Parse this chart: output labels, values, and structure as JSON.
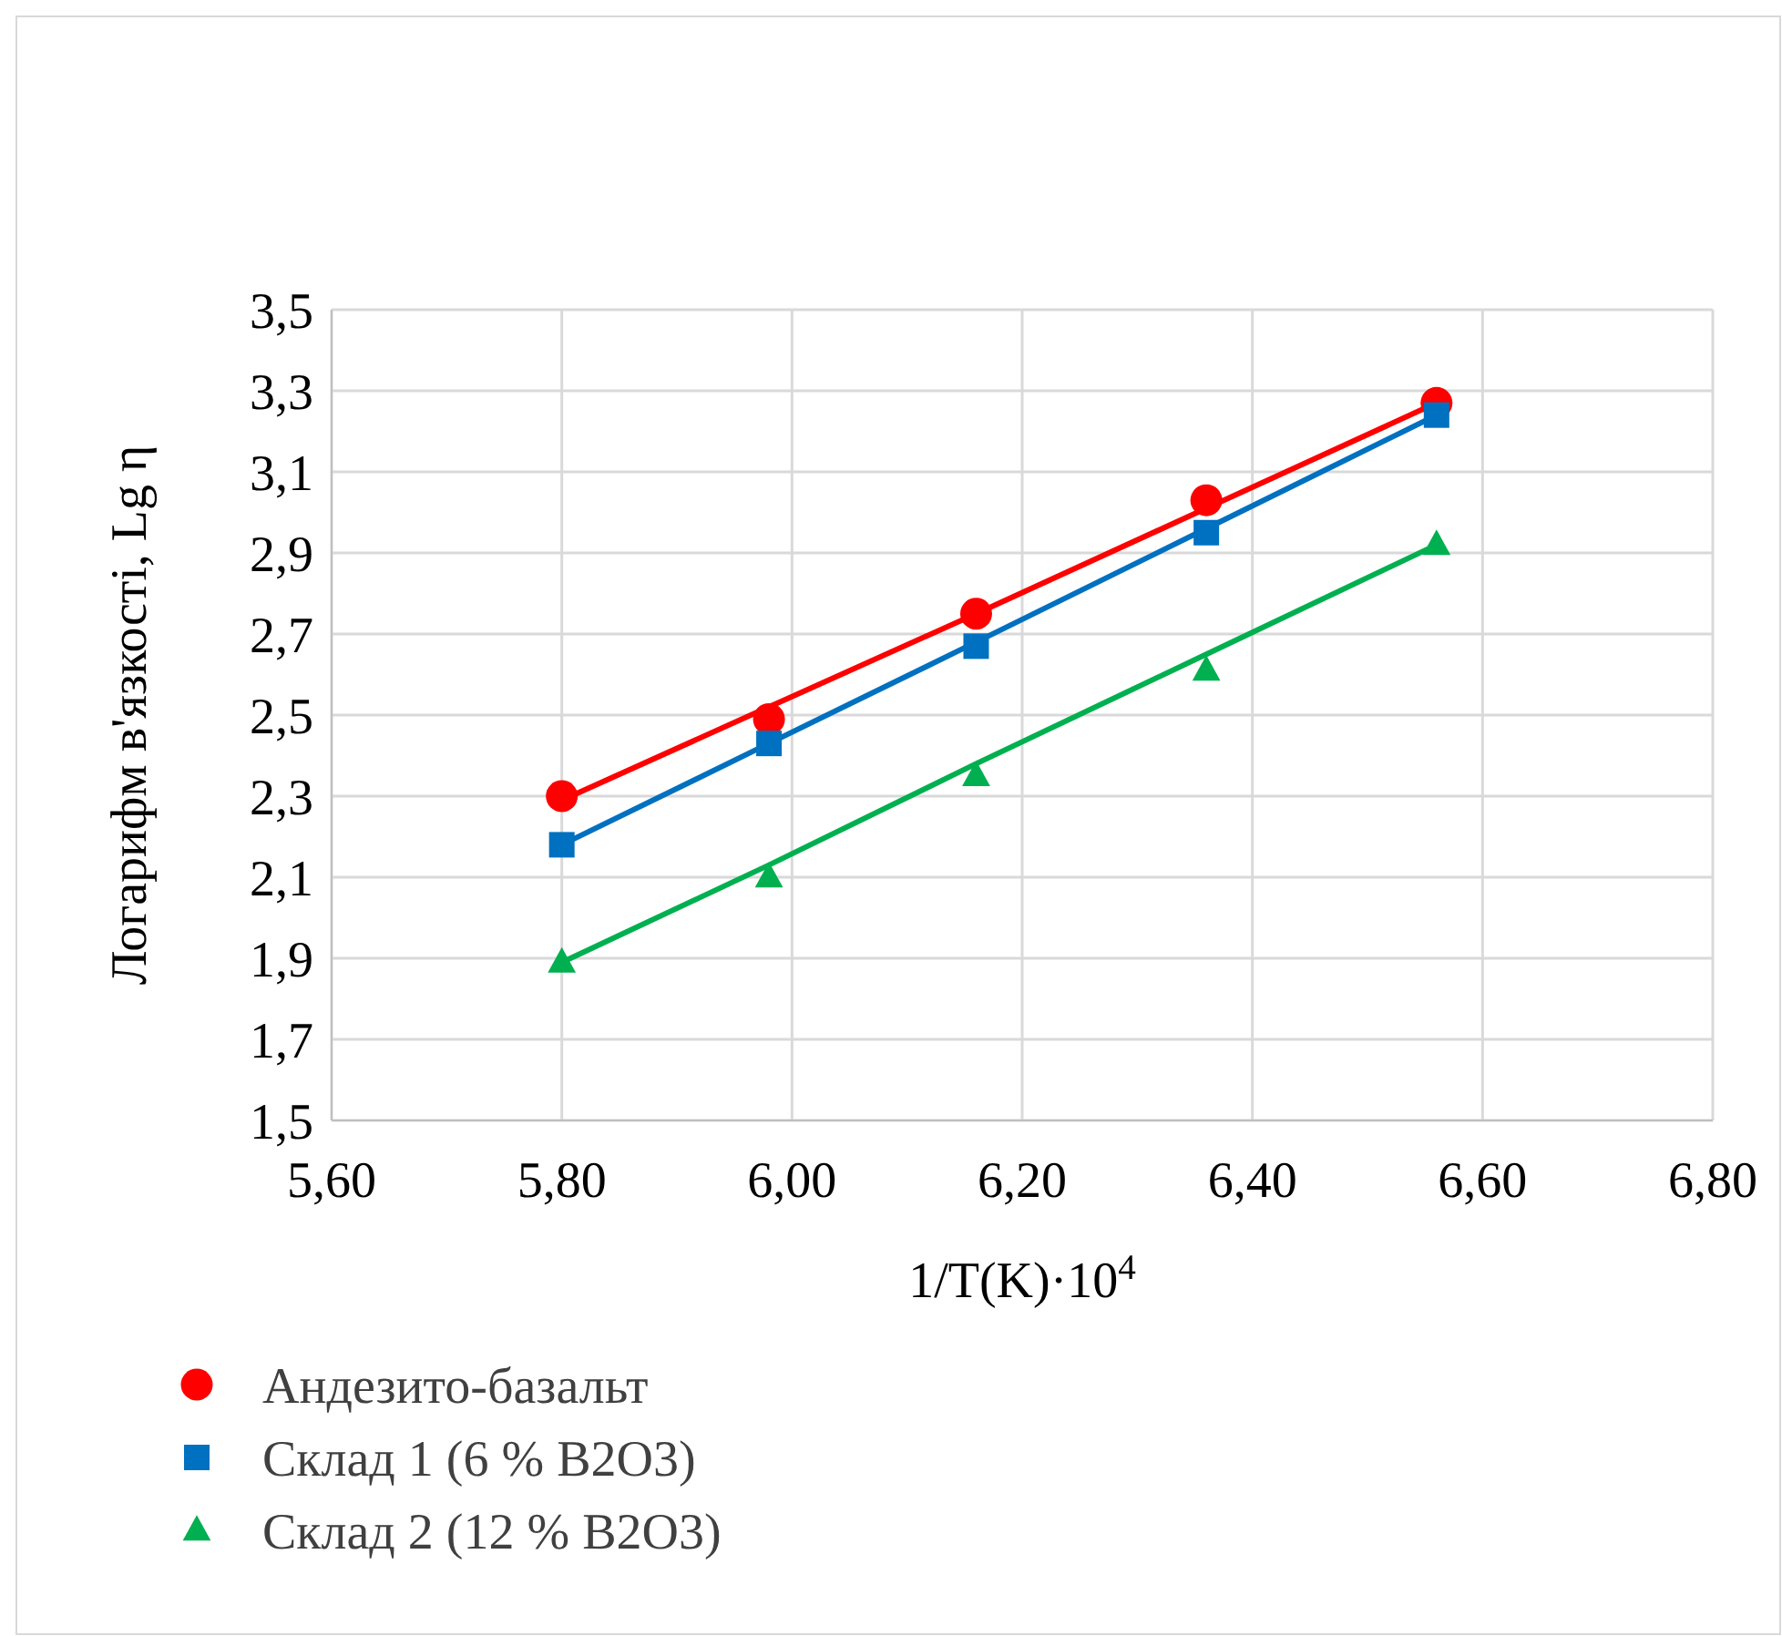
{
  "chart_data": {
    "type": "scatter",
    "xlabel": "1/T(K)·10$^{4}$",
    "ylabel": "Логарифм в'язкості, Lg η",
    "x": [
      5.8,
      5.98,
      6.16,
      6.36,
      6.56
    ],
    "series": [
      {
        "name": "Андезито-базальт",
        "color": "#ff0000",
        "marker": "circle",
        "values": [
          2.3,
          2.49,
          2.75,
          3.03,
          3.27
        ]
      },
      {
        "name": "Склад 1 (6 % B2O3)",
        "color": "#0070c0",
        "marker": "square",
        "values": [
          2.18,
          2.43,
          2.67,
          2.95,
          3.24
        ]
      },
      {
        "name": "Склад 2 (12 % B2O3)",
        "color": "#00b050",
        "marker": "triangle",
        "values": [
          1.89,
          2.1,
          2.35,
          2.61,
          2.92
        ]
      },
      {
        "type": "line",
        "color": "#ff0000",
        "marker": "none",
        "values": [
          2.29,
          2.52,
          2.75,
          3.01,
          3.27
        ]
      },
      {
        "type": "line",
        "color": "#0070c0",
        "marker": "none",
        "values": [
          2.18,
          2.43,
          2.68,
          2.96,
          3.24
        ]
      },
      {
        "type": "line",
        "color": "#00b050",
        "marker": "none",
        "values": [
          1.89,
          2.13,
          2.38,
          2.65,
          2.92
        ]
      }
    ],
    "xlim": [
      5.6,
      6.8
    ],
    "xticks": [
      {
        "value": 5.6,
        "label": "5,60"
      },
      {
        "value": 5.8,
        "label": "5,80"
      },
      {
        "value": 6.0,
        "label": "6,00"
      },
      {
        "value": 6.2,
        "label": "6,20"
      },
      {
        "value": 6.4,
        "label": "6,40"
      },
      {
        "value": 6.6,
        "label": "6,60"
      },
      {
        "value": 6.8,
        "label": "6,80"
      }
    ],
    "ylim": [
      1.5,
      3.5
    ],
    "yticks": [
      {
        "value": 1.5,
        "label": "1,5"
      },
      {
        "value": 1.7,
        "label": "1,7"
      },
      {
        "value": 1.9,
        "label": "1,9"
      },
      {
        "value": 2.1,
        "label": "2,1"
      },
      {
        "value": 2.3,
        "label": "2,3"
      },
      {
        "value": 2.5,
        "label": "2,5"
      },
      {
        "value": 2.7,
        "label": "2,7"
      },
      {
        "value": 2.9,
        "label": "2,9"
      },
      {
        "value": 3.1,
        "label": "3,1"
      },
      {
        "value": 3.3,
        "label": "3,3"
      },
      {
        "value": 3.5,
        "label": "3,5"
      }
    ],
    "grid": true,
    "legend": "bottom left"
  }
}
